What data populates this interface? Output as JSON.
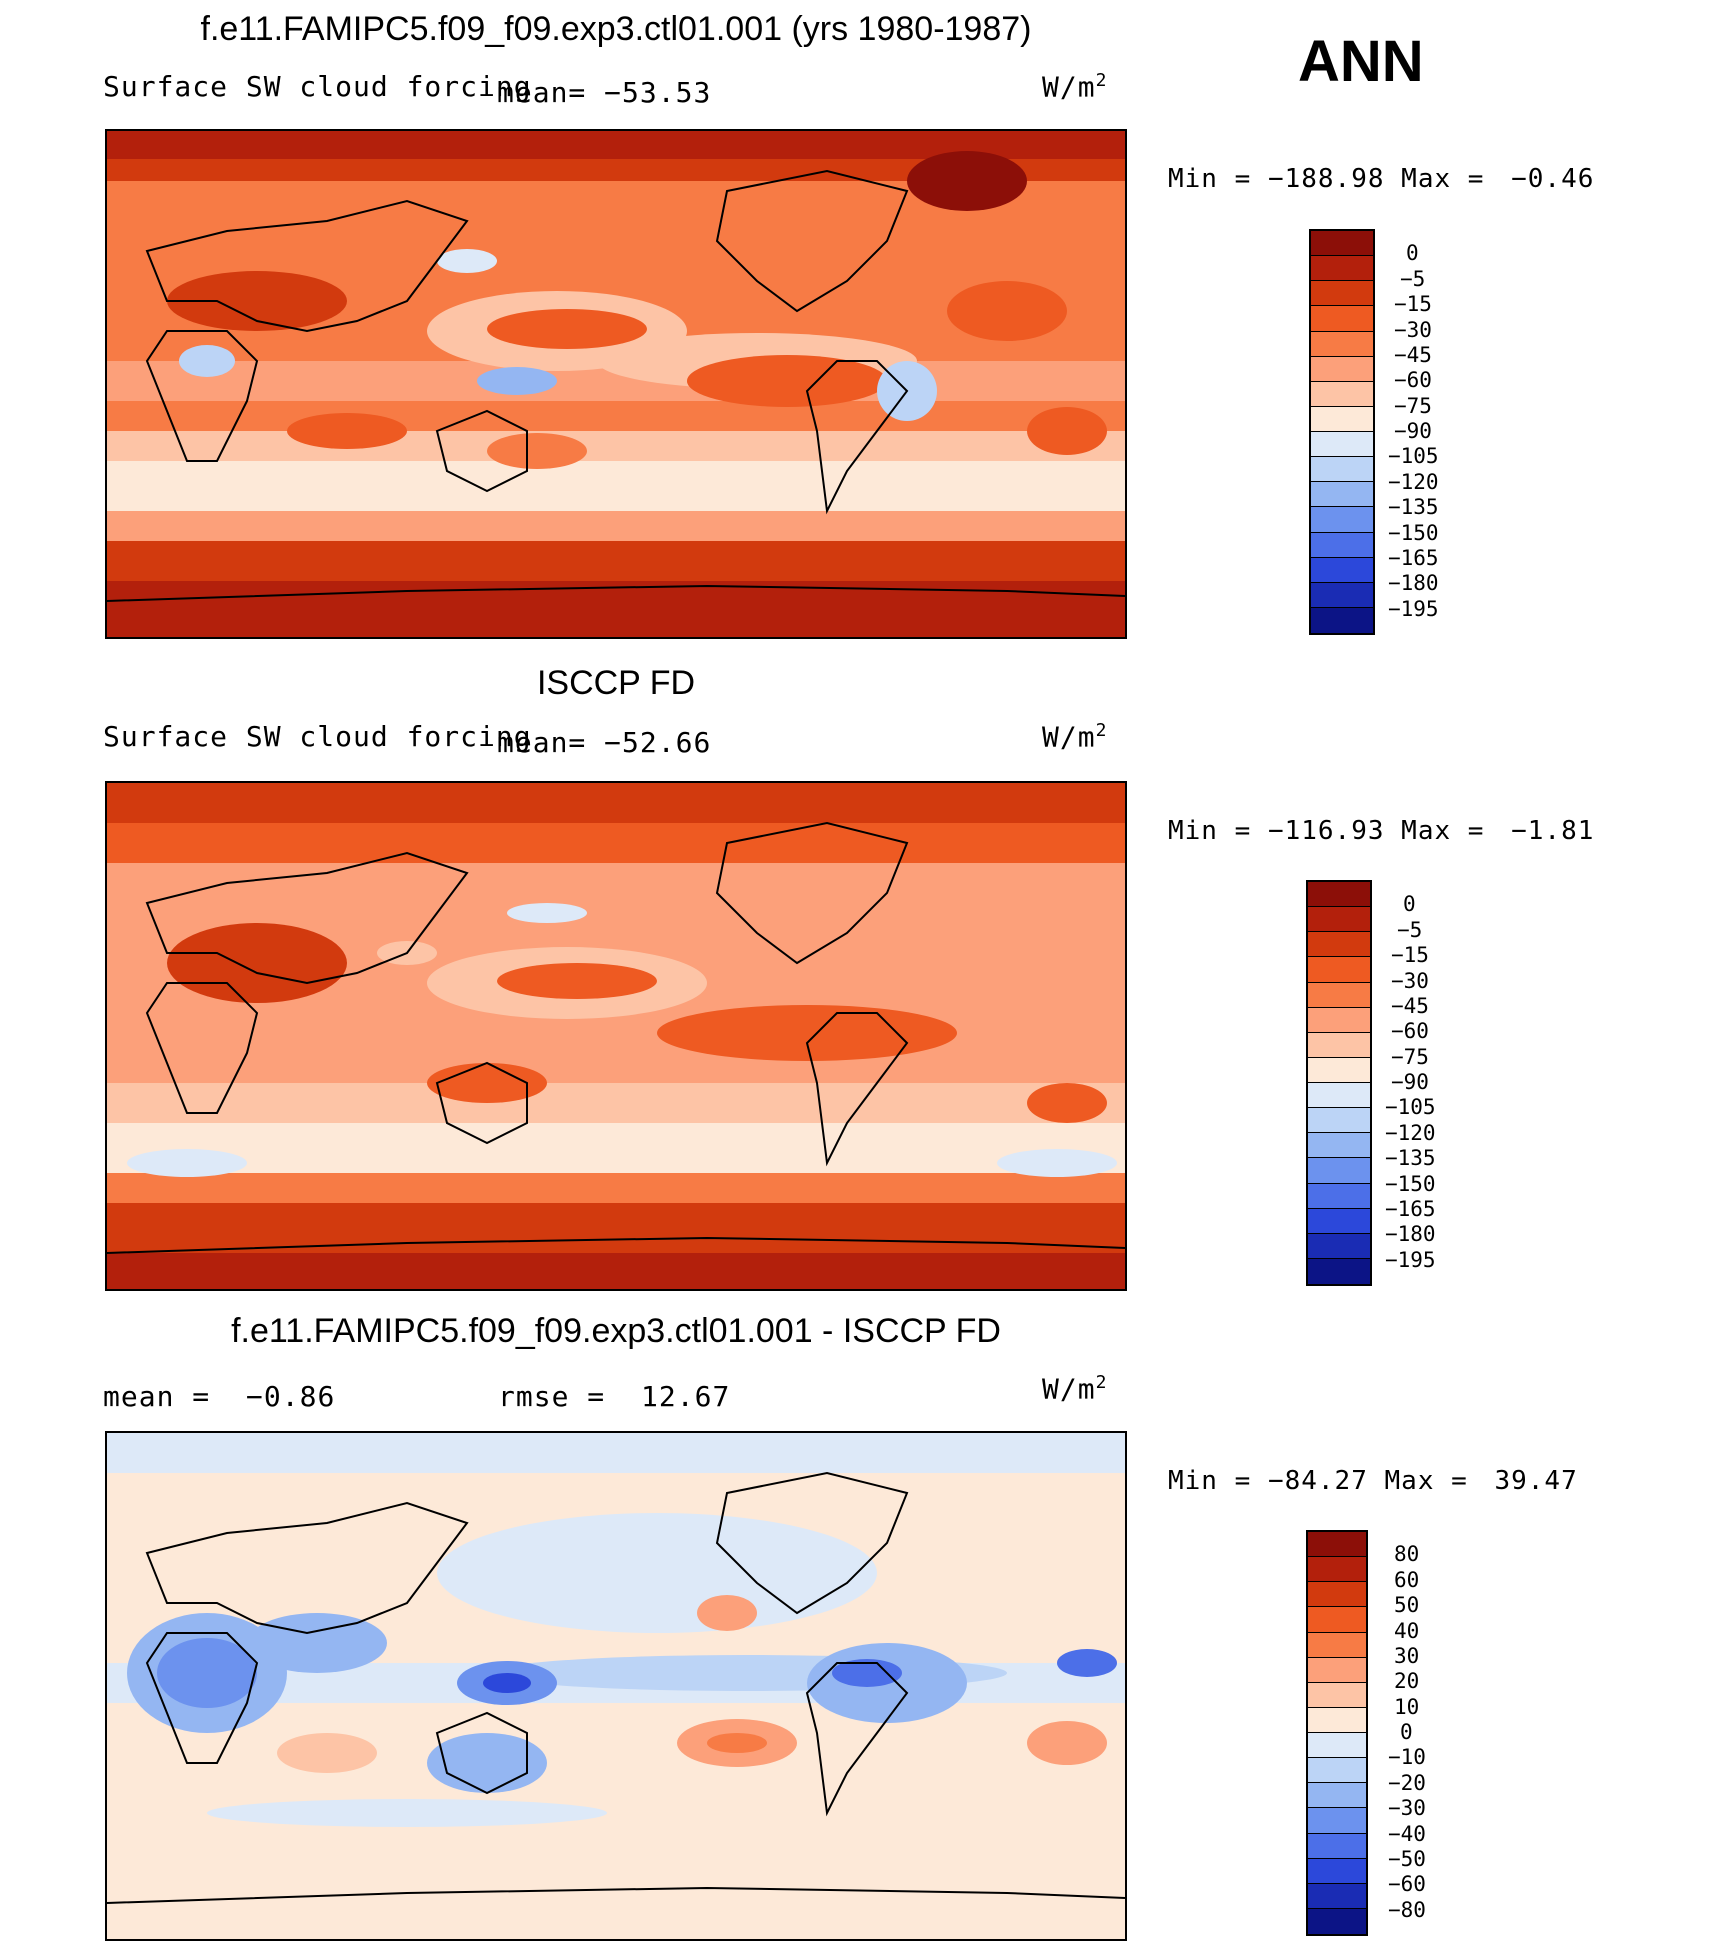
{
  "season": "ANN",
  "units": {
    "base": "W/m",
    "exp": "2"
  },
  "panels": [
    {
      "title": "f.e11.FAMIPC5.f09_f09.exp3.ctl01.001 (yrs 1980-1987)",
      "variable": "Surface SW cloud forcing",
      "stat_label": "mean=",
      "stat_value": "−53.53",
      "min_label": "Min =",
      "min_value": "−188.98",
      "max_label": "Max =",
      "max_value": "−0.46",
      "mean_value": -53.53,
      "field_min": -188.98,
      "field_max": -0.46
    },
    {
      "title": "ISCCP FD",
      "variable": "Surface SW cloud forcing",
      "stat_label": "mean=",
      "stat_value": "−52.66",
      "min_label": "Min =",
      "min_value": "−116.93",
      "max_label": "Max =",
      "max_value": "−1.81",
      "mean_value": -52.66,
      "field_min": -116.93,
      "field_max": -1.81
    },
    {
      "title": "f.e11.FAMIPC5.f09_f09.exp3.ctl01.001 - ISCCP FD",
      "mean_label": "mean =",
      "mean_text": "−0.86",
      "rmse_label": "rmse =",
      "rmse_text": "12.67",
      "min_label": "Min =",
      "min_value": "−84.27",
      "max_label": "Max =",
      "max_value": "39.47",
      "mean_value": -0.86,
      "rmse_value": 12.67,
      "field_min": -84.27,
      "field_max": 39.47
    }
  ],
  "colorbars": {
    "absolute": {
      "labels": [
        "0",
        "−5",
        "−15",
        "−30",
        "−45",
        "−60",
        "−75",
        "−90",
        "−105",
        "−120",
        "−135",
        "−150",
        "−165",
        "−180",
        "−195"
      ],
      "colors": [
        "#8c0f08",
        "#b3200c",
        "#d23a0e",
        "#ee5a22",
        "#f77b45",
        "#fca07a",
        "#fdc4a6",
        "#fde9d8",
        "#dde9f8",
        "#bcd4f6",
        "#94b6f2",
        "#6c92ee",
        "#4c6fe8",
        "#2c48da",
        "#1a2cb4",
        "#0c1486"
      ]
    },
    "difference": {
      "labels": [
        "80",
        "60",
        "50",
        "40",
        "30",
        "20",
        "10",
        "0",
        "−10",
        "−20",
        "−30",
        "−40",
        "−50",
        "−60",
        "−80"
      ],
      "colors": [
        "#8c0f08",
        "#b3200c",
        "#d23a0e",
        "#ee5a22",
        "#f77b45",
        "#fca07a",
        "#fdc4a6",
        "#fde9d8",
        "#dde9f8",
        "#bcd4f6",
        "#94b6f2",
        "#6c92ee",
        "#4c6fe8",
        "#2c48da",
        "#1a2cb4",
        "#0c1486"
      ]
    }
  }
}
